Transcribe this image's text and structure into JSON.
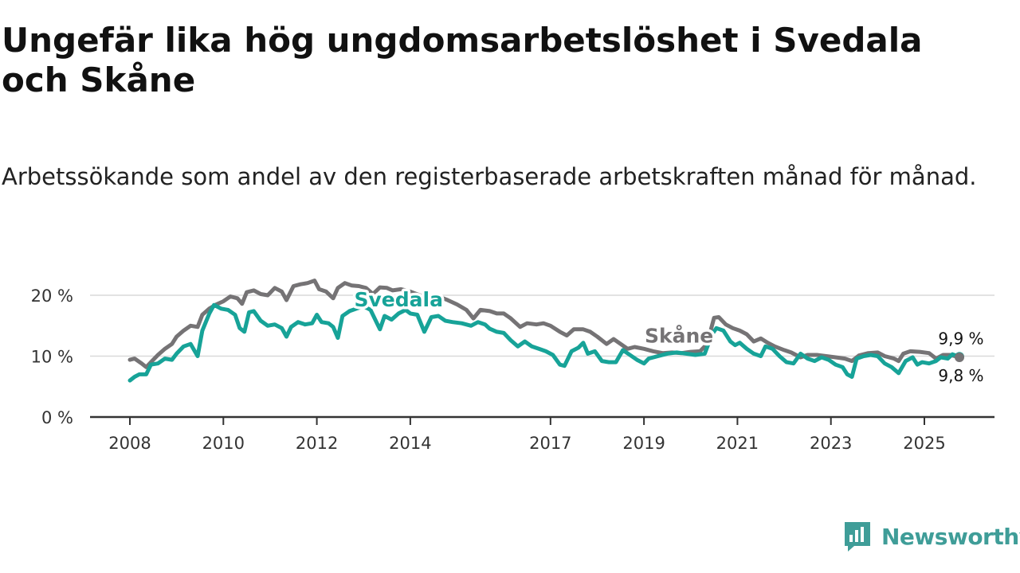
{
  "title": "Ungefär lika hög ungdomsarbetslöshet i Svedala och Skåne",
  "subtitle": "Arbetssökande som andel av den registerbaserade arbetskraften månad för månad.",
  "brand": {
    "name": "Newsworthy",
    "icon": "newsworthy-logo-icon",
    "color": "#3f9d98"
  },
  "chart_data": {
    "type": "line",
    "x_unit": "year",
    "xlim": [
      2008,
      2026.1
    ],
    "ylim": [
      0,
      20
    ],
    "grid": true,
    "legend": "inline-labels",
    "y_ticks": [
      {
        "value": 0,
        "label": "0 %"
      },
      {
        "value": 10,
        "label": "10 %"
      },
      {
        "value": 20,
        "label": "20 %"
      }
    ],
    "x_ticks": [
      {
        "value": 2008,
        "label": "2008"
      },
      {
        "value": 2010,
        "label": "2010"
      },
      {
        "value": 2012,
        "label": "2012"
      },
      {
        "value": 2014,
        "label": "2014"
      },
      {
        "value": 2017,
        "label": "2017"
      },
      {
        "value": 2019,
        "label": "2019"
      },
      {
        "value": 2021,
        "label": "2021"
      },
      {
        "value": 2023,
        "label": "2023"
      },
      {
        "value": 2025,
        "label": "2025"
      }
    ],
    "series": [
      {
        "name": "Skåne",
        "color": "#757375",
        "end_label": "9,8 %",
        "points": [
          [
            2008.0,
            9.4
          ],
          [
            2008.1,
            9.6
          ],
          [
            2008.25,
            8.8
          ],
          [
            2008.35,
            8.2
          ],
          [
            2008.45,
            9.0
          ],
          [
            2008.6,
            10.2
          ],
          [
            2008.75,
            11.2
          ],
          [
            2008.9,
            12.0
          ],
          [
            2009.0,
            13.2
          ],
          [
            2009.15,
            14.2
          ],
          [
            2009.3,
            15.0
          ],
          [
            2009.45,
            14.8
          ],
          [
            2009.55,
            16.8
          ],
          [
            2009.7,
            17.8
          ],
          [
            2009.85,
            18.5
          ],
          [
            2010.0,
            19.0
          ],
          [
            2010.15,
            19.8
          ],
          [
            2010.3,
            19.5
          ],
          [
            2010.4,
            18.6
          ],
          [
            2010.5,
            20.5
          ],
          [
            2010.65,
            20.8
          ],
          [
            2010.8,
            20.2
          ],
          [
            2010.95,
            20.0
          ],
          [
            2011.1,
            21.2
          ],
          [
            2011.25,
            20.6
          ],
          [
            2011.35,
            19.2
          ],
          [
            2011.5,
            21.5
          ],
          [
            2011.65,
            21.8
          ],
          [
            2011.8,
            22.0
          ],
          [
            2011.95,
            22.4
          ],
          [
            2012.05,
            21.0
          ],
          [
            2012.2,
            20.6
          ],
          [
            2012.35,
            19.5
          ],
          [
            2012.45,
            21.2
          ],
          [
            2012.6,
            22.0
          ],
          [
            2012.75,
            21.6
          ],
          [
            2012.9,
            21.5
          ],
          [
            2013.05,
            21.2
          ],
          [
            2013.2,
            20.2
          ],
          [
            2013.35,
            21.3
          ],
          [
            2013.5,
            21.2
          ],
          [
            2013.62,
            20.8
          ],
          [
            2013.8,
            21.0
          ],
          [
            2014.0,
            20.6
          ],
          [
            2014.2,
            20.0
          ],
          [
            2014.4,
            19.5
          ],
          [
            2014.6,
            19.8
          ],
          [
            2014.8,
            19.2
          ],
          [
            2015.0,
            18.5
          ],
          [
            2015.2,
            17.6
          ],
          [
            2015.35,
            16.2
          ],
          [
            2015.5,
            17.6
          ],
          [
            2015.7,
            17.4
          ],
          [
            2015.85,
            17.0
          ],
          [
            2016.0,
            17.0
          ],
          [
            2016.15,
            16.2
          ],
          [
            2016.35,
            14.8
          ],
          [
            2016.5,
            15.4
          ],
          [
            2016.7,
            15.2
          ],
          [
            2016.85,
            15.4
          ],
          [
            2017.0,
            15.0
          ],
          [
            2017.2,
            14.0
          ],
          [
            2017.35,
            13.4
          ],
          [
            2017.5,
            14.4
          ],
          [
            2017.7,
            14.4
          ],
          [
            2017.85,
            14.0
          ],
          [
            2018.0,
            13.2
          ],
          [
            2018.2,
            12.0
          ],
          [
            2018.35,
            12.8
          ],
          [
            2018.5,
            12.0
          ],
          [
            2018.65,
            11.2
          ],
          [
            2018.8,
            11.5
          ],
          [
            2019.0,
            11.2
          ],
          [
            2019.2,
            10.8
          ],
          [
            2019.4,
            10.5
          ],
          [
            2019.6,
            10.6
          ],
          [
            2019.8,
            10.5
          ],
          [
            2020.0,
            10.7
          ],
          [
            2020.2,
            10.8
          ],
          [
            2020.35,
            12.0
          ],
          [
            2020.5,
            16.3
          ],
          [
            2020.6,
            16.4
          ],
          [
            2020.75,
            15.2
          ],
          [
            2020.9,
            14.6
          ],
          [
            2021.05,
            14.2
          ],
          [
            2021.2,
            13.6
          ],
          [
            2021.35,
            12.4
          ],
          [
            2021.5,
            12.9
          ],
          [
            2021.65,
            12.2
          ],
          [
            2021.8,
            11.6
          ],
          [
            2022.0,
            11.0
          ],
          [
            2022.15,
            10.6
          ],
          [
            2022.35,
            9.8
          ],
          [
            2022.5,
            10.2
          ],
          [
            2022.7,
            10.2
          ],
          [
            2022.9,
            10.0
          ],
          [
            2023.1,
            9.8
          ],
          [
            2023.3,
            9.6
          ],
          [
            2023.45,
            9.2
          ],
          [
            2023.6,
            10.1
          ],
          [
            2023.8,
            10.5
          ],
          [
            2024.0,
            10.6
          ],
          [
            2024.15,
            10.0
          ],
          [
            2024.35,
            9.6
          ],
          [
            2024.45,
            9.2
          ],
          [
            2024.55,
            10.4
          ],
          [
            2024.7,
            10.8
          ],
          [
            2024.9,
            10.7
          ],
          [
            2025.1,
            10.5
          ],
          [
            2025.25,
            9.6
          ],
          [
            2025.4,
            10.2
          ],
          [
            2025.55,
            10.2
          ],
          [
            2025.75,
            9.8
          ]
        ]
      },
      {
        "name": "Svedala",
        "color": "#17a398",
        "end_label": "9,9 %",
        "points": [
          [
            2008.0,
            6.0
          ],
          [
            2008.1,
            6.6
          ],
          [
            2008.2,
            7.0
          ],
          [
            2008.35,
            7.0
          ],
          [
            2008.45,
            8.6
          ],
          [
            2008.6,
            8.8
          ],
          [
            2008.75,
            9.6
          ],
          [
            2008.9,
            9.4
          ],
          [
            2009.0,
            10.4
          ],
          [
            2009.15,
            11.6
          ],
          [
            2009.3,
            12.0
          ],
          [
            2009.45,
            10.0
          ],
          [
            2009.55,
            14.2
          ],
          [
            2009.7,
            17.0
          ],
          [
            2009.8,
            18.4
          ],
          [
            2009.95,
            17.8
          ],
          [
            2010.1,
            17.6
          ],
          [
            2010.25,
            16.8
          ],
          [
            2010.35,
            14.6
          ],
          [
            2010.45,
            14.0
          ],
          [
            2010.55,
            17.2
          ],
          [
            2010.65,
            17.4
          ],
          [
            2010.8,
            15.8
          ],
          [
            2010.95,
            15.0
          ],
          [
            2011.1,
            15.2
          ],
          [
            2011.25,
            14.6
          ],
          [
            2011.35,
            13.2
          ],
          [
            2011.45,
            14.8
          ],
          [
            2011.6,
            15.6
          ],
          [
            2011.75,
            15.2
          ],
          [
            2011.9,
            15.4
          ],
          [
            2012.0,
            16.8
          ],
          [
            2012.1,
            15.6
          ],
          [
            2012.25,
            15.4
          ],
          [
            2012.35,
            14.8
          ],
          [
            2012.45,
            13.0
          ],
          [
            2012.55,
            16.6
          ],
          [
            2012.7,
            17.4
          ],
          [
            2012.85,
            17.8
          ],
          [
            2013.0,
            18.2
          ],
          [
            2013.15,
            17.6
          ],
          [
            2013.3,
            15.2
          ],
          [
            2013.35,
            14.4
          ],
          [
            2013.45,
            16.6
          ],
          [
            2013.6,
            16.0
          ],
          [
            2013.75,
            17.0
          ],
          [
            2013.9,
            17.6
          ],
          [
            2014.0,
            17.0
          ],
          [
            2014.15,
            16.8
          ],
          [
            2014.3,
            14.0
          ],
          [
            2014.45,
            16.4
          ],
          [
            2014.6,
            16.6
          ],
          [
            2014.75,
            15.8
          ],
          [
            2014.9,
            15.6
          ],
          [
            2015.1,
            15.4
          ],
          [
            2015.3,
            15.0
          ],
          [
            2015.45,
            15.6
          ],
          [
            2015.6,
            15.2
          ],
          [
            2015.7,
            14.5
          ],
          [
            2015.85,
            14.0
          ],
          [
            2016.0,
            13.8
          ],
          [
            2016.15,
            12.6
          ],
          [
            2016.3,
            11.6
          ],
          [
            2016.45,
            12.4
          ],
          [
            2016.6,
            11.6
          ],
          [
            2016.75,
            11.2
          ],
          [
            2016.9,
            10.8
          ],
          [
            2017.05,
            10.2
          ],
          [
            2017.2,
            8.6
          ],
          [
            2017.3,
            8.4
          ],
          [
            2017.45,
            10.8
          ],
          [
            2017.6,
            11.4
          ],
          [
            2017.7,
            12.2
          ],
          [
            2017.8,
            10.4
          ],
          [
            2017.95,
            10.8
          ],
          [
            2018.1,
            9.2
          ],
          [
            2018.25,
            9.0
          ],
          [
            2018.4,
            9.0
          ],
          [
            2018.55,
            11.0
          ],
          [
            2018.7,
            10.2
          ],
          [
            2018.85,
            9.4
          ],
          [
            2019.0,
            8.8
          ],
          [
            2019.1,
            9.6
          ],
          [
            2019.3,
            10.0
          ],
          [
            2019.5,
            10.4
          ],
          [
            2019.7,
            10.6
          ],
          [
            2019.9,
            10.4
          ],
          [
            2020.1,
            10.2
          ],
          [
            2020.3,
            10.4
          ],
          [
            2020.45,
            13.5
          ],
          [
            2020.55,
            14.6
          ],
          [
            2020.7,
            14.2
          ],
          [
            2020.85,
            12.4
          ],
          [
            2020.95,
            11.8
          ],
          [
            2021.05,
            12.2
          ],
          [
            2021.2,
            11.2
          ],
          [
            2021.35,
            10.4
          ],
          [
            2021.5,
            10.0
          ],
          [
            2021.6,
            11.6
          ],
          [
            2021.75,
            11.2
          ],
          [
            2021.9,
            10.0
          ],
          [
            2022.05,
            9.0
          ],
          [
            2022.2,
            8.8
          ],
          [
            2022.35,
            10.4
          ],
          [
            2022.5,
            9.6
          ],
          [
            2022.65,
            9.2
          ],
          [
            2022.8,
            9.8
          ],
          [
            2022.95,
            9.4
          ],
          [
            2023.1,
            8.6
          ],
          [
            2023.25,
            8.2
          ],
          [
            2023.35,
            7.0
          ],
          [
            2023.45,
            6.6
          ],
          [
            2023.55,
            9.6
          ],
          [
            2023.7,
            10.0
          ],
          [
            2023.85,
            10.2
          ],
          [
            2024.0,
            10.0
          ],
          [
            2024.15,
            8.8
          ],
          [
            2024.3,
            8.2
          ],
          [
            2024.45,
            7.2
          ],
          [
            2024.6,
            9.2
          ],
          [
            2024.75,
            9.8
          ],
          [
            2024.85,
            8.6
          ],
          [
            2024.95,
            9.0
          ],
          [
            2025.1,
            8.8
          ],
          [
            2025.25,
            9.2
          ],
          [
            2025.35,
            9.8
          ],
          [
            2025.5,
            9.6
          ],
          [
            2025.6,
            10.3
          ],
          [
            2025.75,
            9.9
          ]
        ]
      }
    ]
  }
}
